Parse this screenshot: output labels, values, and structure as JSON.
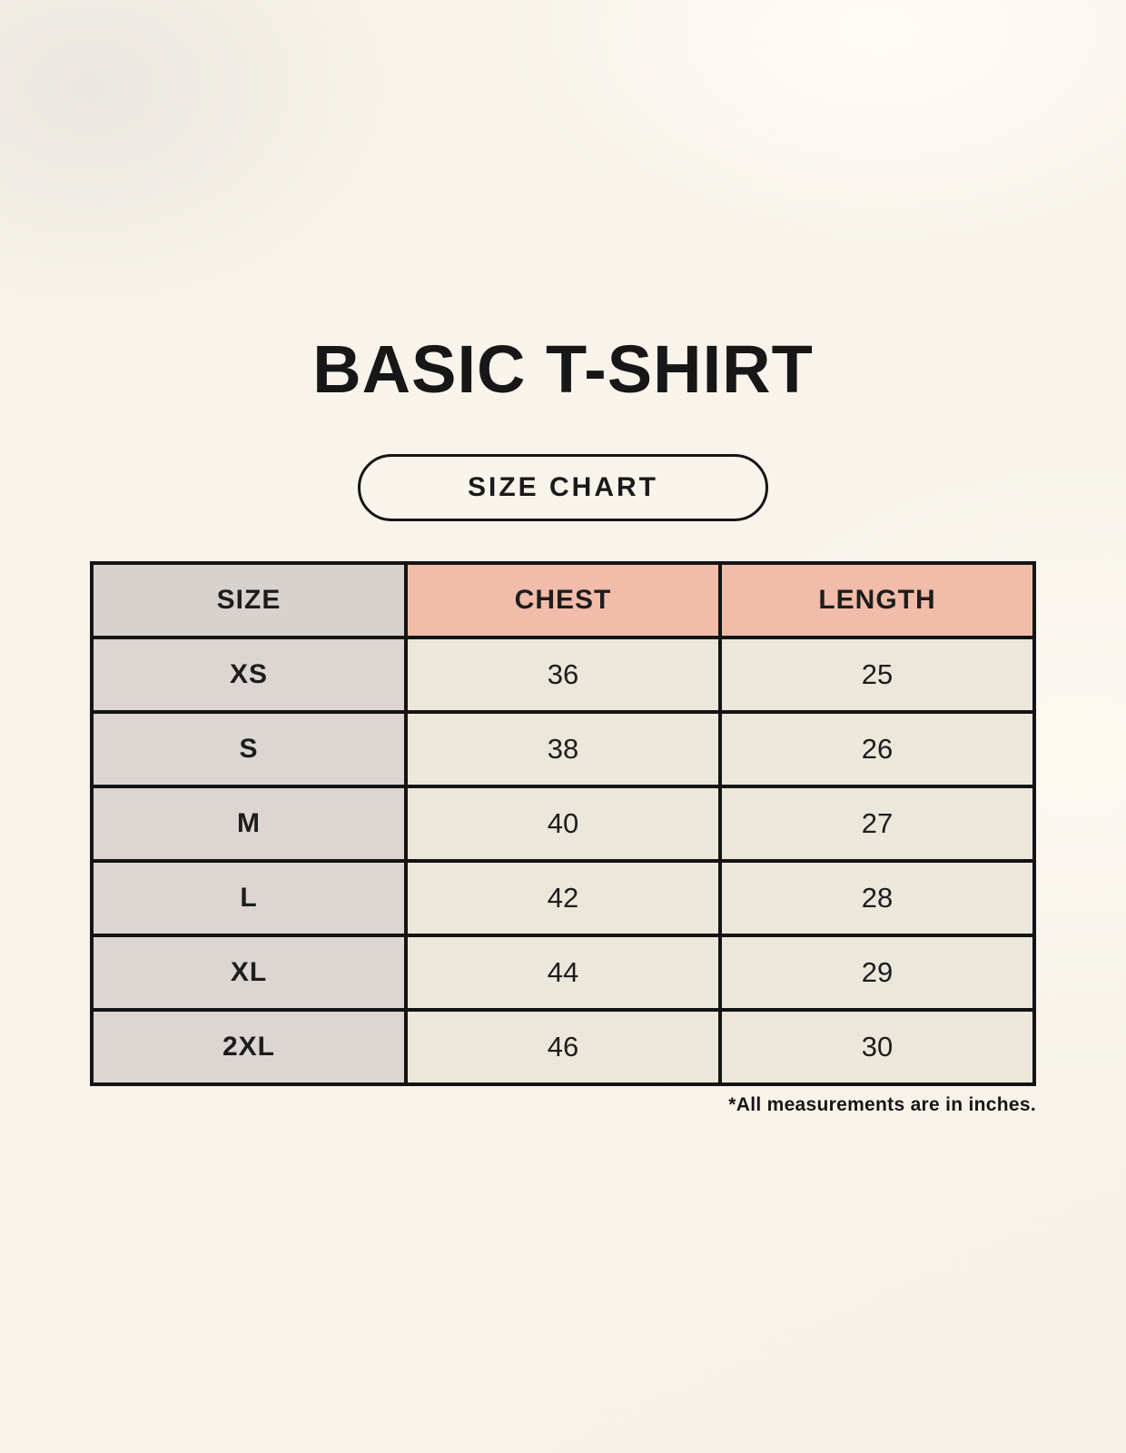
{
  "title": "BASIC T-SHIRT",
  "badge_label": "SIZE CHART",
  "table": {
    "columns": [
      "SIZE",
      "CHEST",
      "LENGTH"
    ],
    "rows": [
      {
        "size": "XS",
        "chest": "36",
        "length": "25"
      },
      {
        "size": "S",
        "chest": "38",
        "length": "26"
      },
      {
        "size": "M",
        "chest": "40",
        "length": "27"
      },
      {
        "size": "L",
        "chest": "42",
        "length": "28"
      },
      {
        "size": "XL",
        "chest": "44",
        "length": "29"
      },
      {
        "size": "2XL",
        "chest": "46",
        "length": "30"
      }
    ]
  },
  "footnote": "*All measurements are in inches.",
  "colors": {
    "background": "#f7f3ea",
    "size_header_bg": "#d8d2ce",
    "measure_header_bg": "#f2bcab",
    "row_label_bg": "#dcd5d1",
    "value_cell_bg": "#ece7db",
    "border": "#141414",
    "text": "#1d1d1d"
  }
}
